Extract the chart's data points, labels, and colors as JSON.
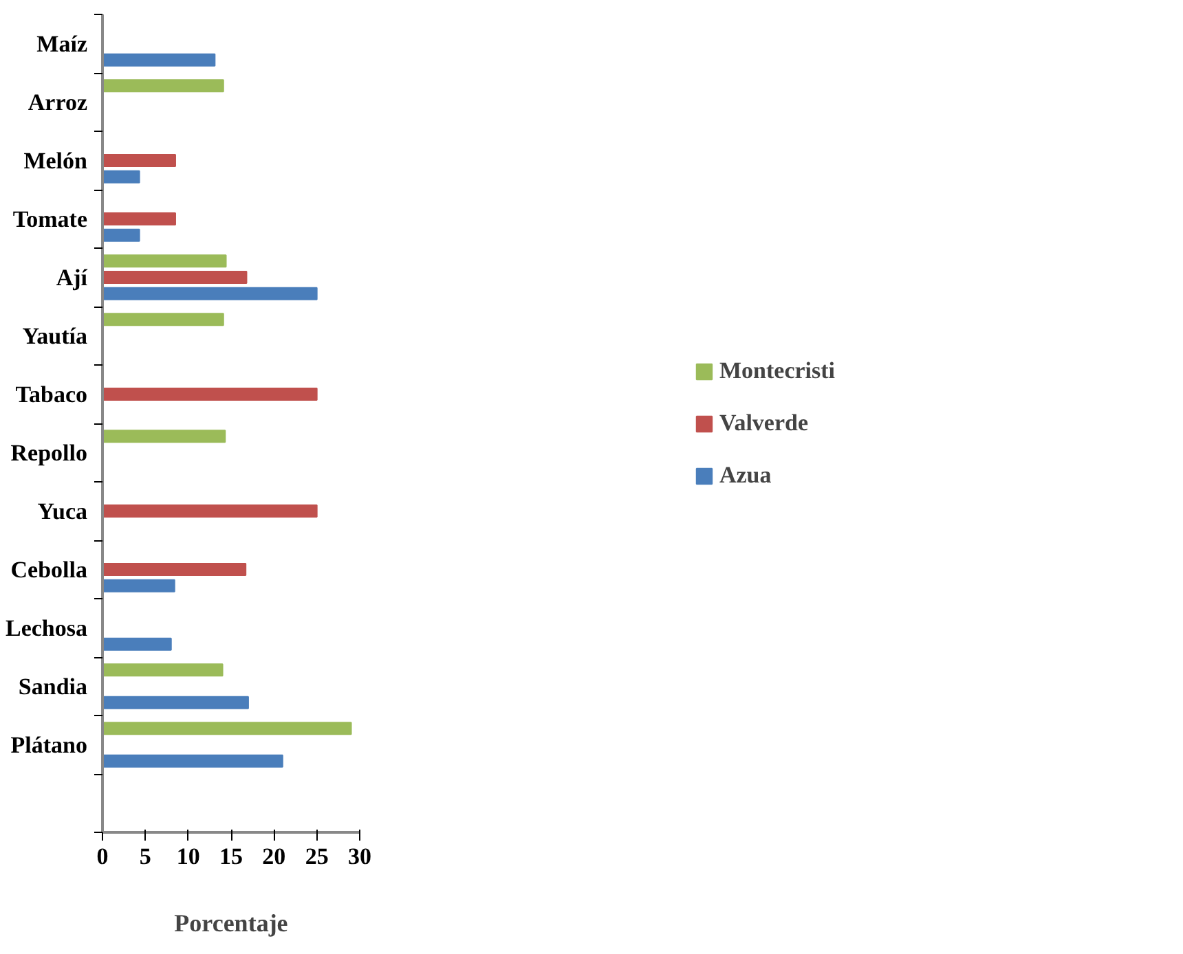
{
  "chart_data": {
    "type": "bar",
    "orientation": "horizontal",
    "xlabel": "Porcentaje",
    "categories": [
      "Maíz",
      "Arroz",
      "Melón",
      "Tomate",
      "Ají",
      "Yautía",
      "Tabaco",
      "Repollo",
      "Yuca",
      "Cebolla",
      "Lechosa",
      "Sandia",
      "Plátano",
      null
    ],
    "series": [
      {
        "name": "Azua",
        "color": "#4a7ebb",
        "values": [
          13.1,
          0,
          4.3,
          4.3,
          25,
          0,
          0,
          0,
          0,
          8.4,
          8.0,
          17.0,
          21.0,
          null
        ]
      },
      {
        "name": "Valverde",
        "color": "#c0504d",
        "values": [
          0,
          0,
          8.5,
          8.5,
          16.8,
          0,
          25,
          0,
          25,
          16.7,
          0,
          0,
          0,
          null
        ]
      },
      {
        "name": "Montecristi",
        "color": "#9bbb59",
        "values": [
          0,
          14.1,
          0,
          0,
          14.4,
          14.1,
          0,
          14.3,
          0,
          0,
          0,
          14.0,
          29.0,
          null
        ]
      }
    ],
    "xlim": [
      0,
      30
    ],
    "xticks": [
      0,
      5,
      10,
      15,
      20,
      25,
      30
    ],
    "grid": false,
    "legend": "right"
  }
}
